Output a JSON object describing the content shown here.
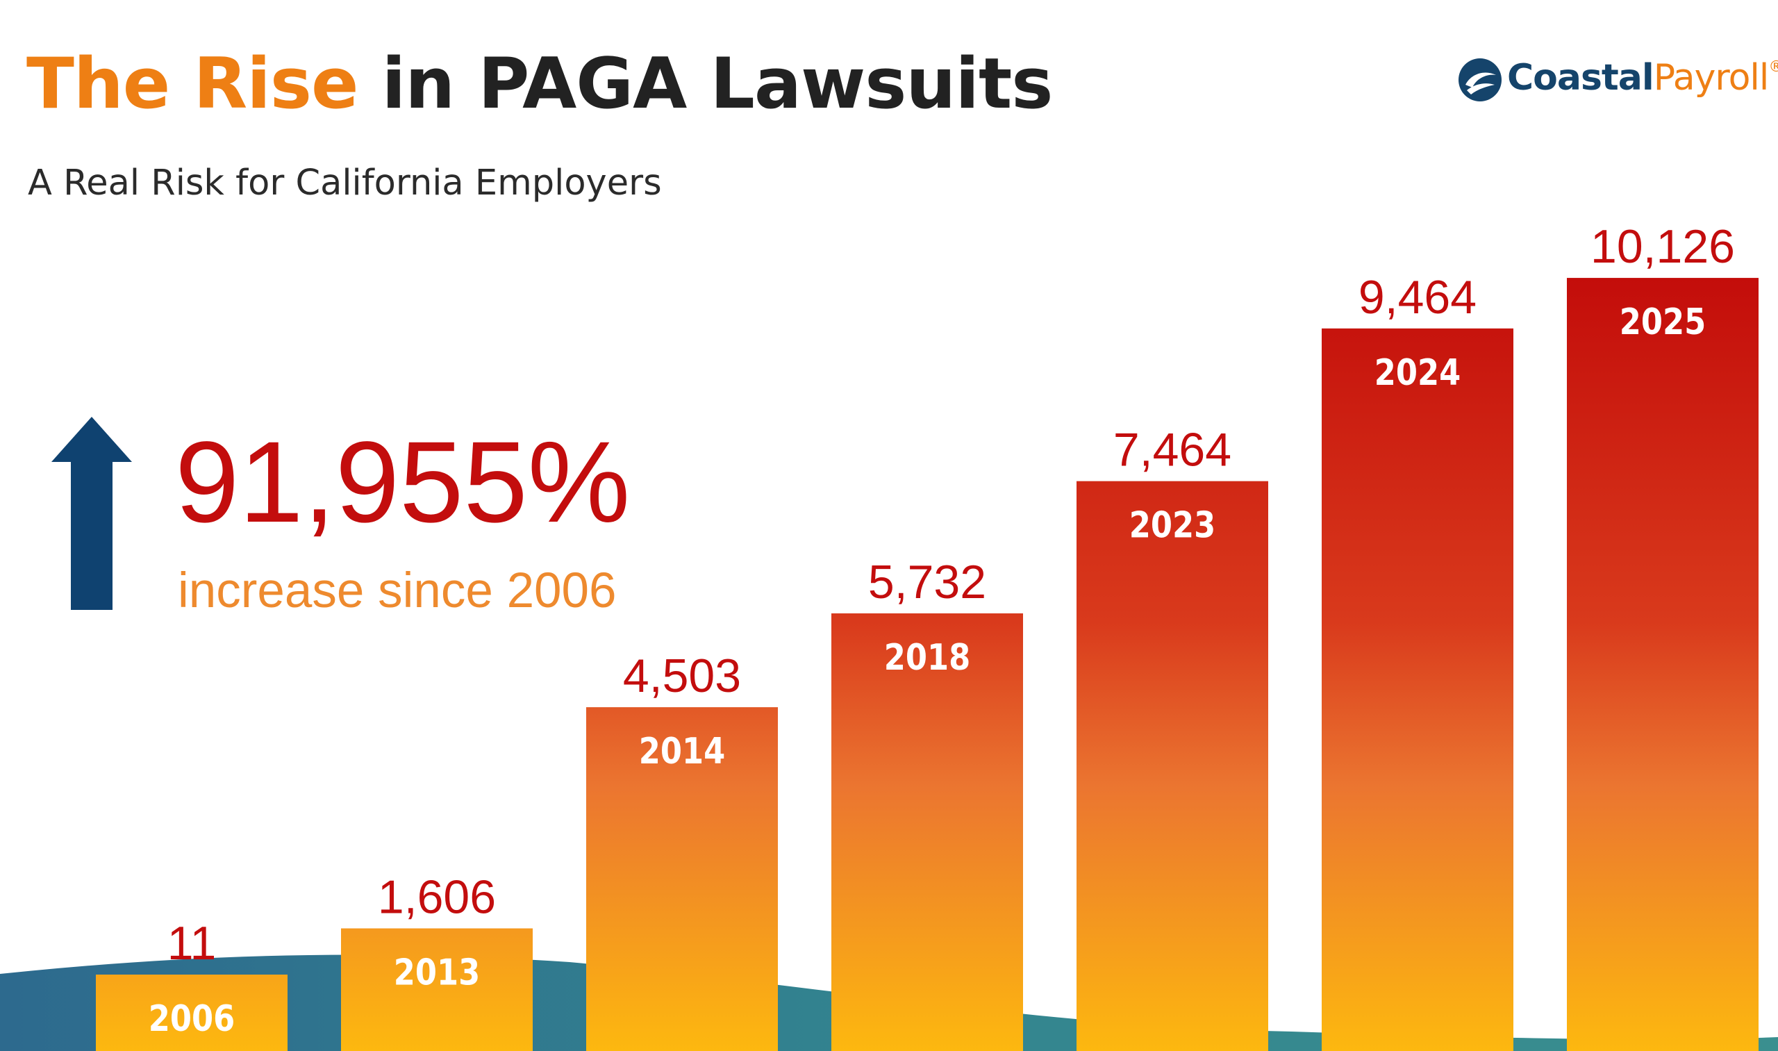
{
  "header": {
    "title_highlight": "The Rise",
    "title_rest": " in PAGA Lawsuits",
    "subtitle": "A Real Risk for California Employers"
  },
  "logo": {
    "word_a": "Coastal",
    "word_b": "Payroll",
    "reg": "®"
  },
  "callout": {
    "value": "91,955%",
    "label": "increase since 2006",
    "icon": "up-arrow-icon"
  },
  "colors": {
    "bar_top": "#c30c0a",
    "bar_bottom": "#fdb80f",
    "value_label": "#c30d0d",
    "accent_orange": "#ee7f14",
    "arrow_blue": "#0f4270",
    "wave_teal": "#2f7f8e"
  },
  "chart_data": {
    "type": "bar",
    "title": "The Rise in PAGA Lawsuits",
    "categories": [
      "2006",
      "2013",
      "2014",
      "2018",
      "2023",
      "2024",
      "2025"
    ],
    "values": [
      11,
      1606,
      4503,
      5732,
      7464,
      9464,
      10126
    ],
    "value_labels": [
      "11",
      "1,606",
      "4,503",
      "5,732",
      "7,464",
      "9,464",
      "10,126"
    ],
    "ylim": [
      0,
      11000
    ],
    "grid": false,
    "legend": "none"
  }
}
